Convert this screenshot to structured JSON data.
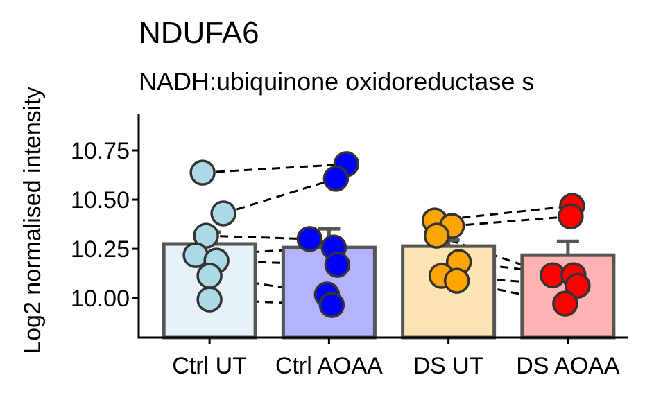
{
  "chart_data": {
    "type": "bar",
    "title": "NDUFA6",
    "subtitle": "NADH:ubiquinone oxidoreductase s",
    "y_label": "Log2 normalised intensity",
    "categories": [
      "Ctrl UT",
      "Ctrl AOAA",
      "DS UT",
      "DS AOAA"
    ],
    "values": [
      10.275,
      10.257,
      10.264,
      10.218
    ],
    "errors": [
      0.06,
      0.095,
      0.03,
      0.07
    ],
    "colors": [
      "#e6f2f8",
      "#b3b3ff",
      "#ffe4b3",
      "#ffb3b3"
    ],
    "point_colors": [
      "#add8e6",
      "#0000ff",
      "#ffa500",
      "#ff0000"
    ],
    "points": [
      [
        10.637,
        10.43,
        10.317,
        10.218,
        10.19,
        10.113,
        9.993
      ],
      [
        10.68,
        10.606,
        10.3,
        10.257,
        10.169,
        10.018,
        9.965
      ],
      [
        10.394,
        10.366,
        10.317,
        10.183,
        10.113,
        10.088
      ],
      [
        10.468,
        10.415,
        10.116,
        10.116,
        10.063,
        9.972
      ]
    ],
    "ylim": [
      9.8,
      10.933
    ],
    "yticks": [
      {
        "value": 10,
        "label": "10.00"
      },
      {
        "value": 10.25,
        "label": "10.25"
      },
      {
        "value": 10.5,
        "label": "10.50"
      },
      {
        "value": 10.75,
        "label": "10.75"
      }
    ]
  }
}
